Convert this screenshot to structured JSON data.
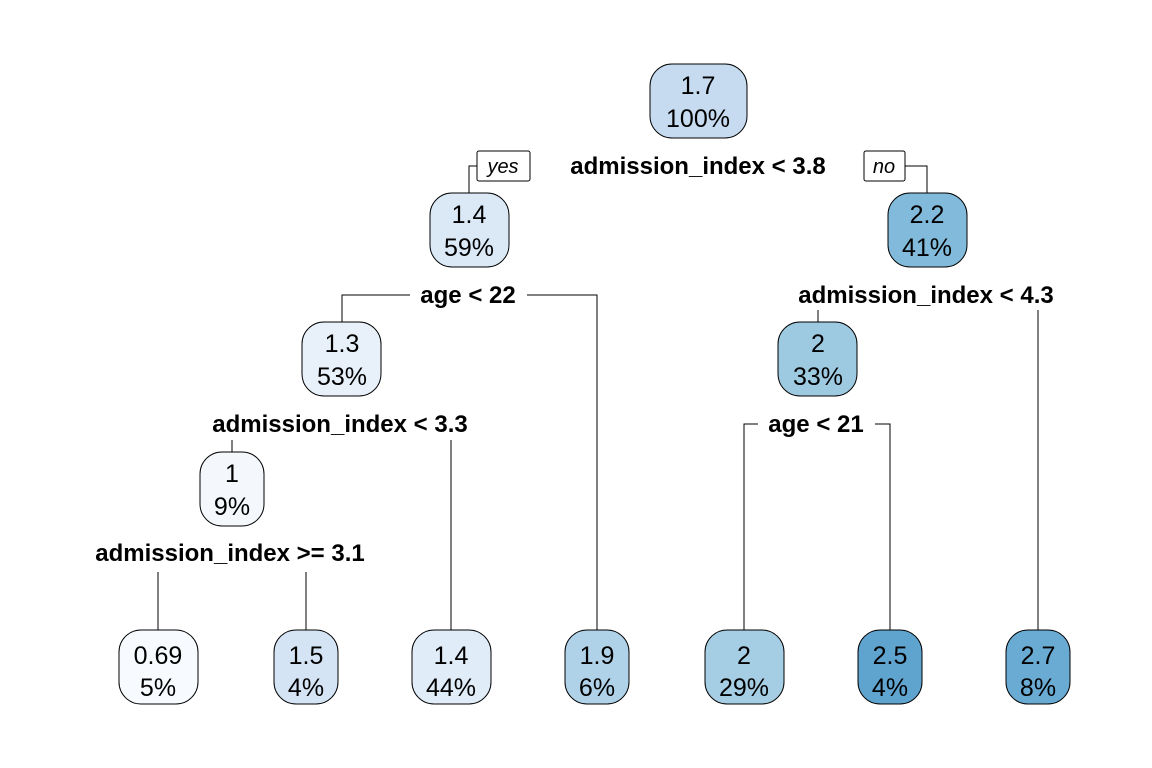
{
  "tree": {
    "branch_labels": {
      "yes": "yes",
      "no": "no"
    },
    "nodes": [
      {
        "id": "root",
        "value": "1.7",
        "percent": "100%",
        "color": "#c6dbef"
      },
      {
        "id": "L",
        "value": "1.4",
        "percent": "59%",
        "color": "#dbe9f6"
      },
      {
        "id": "R",
        "value": "2.2",
        "percent": "41%",
        "color": "#82badb"
      },
      {
        "id": "LL",
        "value": "1.3",
        "percent": "53%",
        "color": "#e8f1fa"
      },
      {
        "id": "RL",
        "value": "2",
        "percent": "33%",
        "color": "#9dcae1"
      },
      {
        "id": "LLL",
        "value": "1",
        "percent": "9%",
        "color": "#f4f8fd"
      },
      {
        "id": "leaf1",
        "value": "0.69",
        "percent": "5%",
        "color": "#f7fbff"
      },
      {
        "id": "leaf2",
        "value": "1.5",
        "percent": "4%",
        "color": "#d4e4f4"
      },
      {
        "id": "leaf3",
        "value": "1.4",
        "percent": "44%",
        "color": "#e0ecf8"
      },
      {
        "id": "leaf4",
        "value": "1.9",
        "percent": "6%",
        "color": "#b0d2e8"
      },
      {
        "id": "leaf5",
        "value": "2",
        "percent": "29%",
        "color": "#a5cde3"
      },
      {
        "id": "leaf6",
        "value": "2.5",
        "percent": "4%",
        "color": "#5fa3cf"
      },
      {
        "id": "leaf7",
        "value": "2.7",
        "percent": "8%",
        "color": "#6aabd4"
      }
    ],
    "splits": [
      {
        "id": "root",
        "label": "admission_index < 3.8"
      },
      {
        "id": "L",
        "label": "age < 22"
      },
      {
        "id": "R",
        "label": "admission_index < 4.3"
      },
      {
        "id": "LL",
        "label": "admission_index < 3.3"
      },
      {
        "id": "RL",
        "label": "age < 21"
      },
      {
        "id": "LLL",
        "label": "admission_index >= 3.1"
      }
    ]
  }
}
